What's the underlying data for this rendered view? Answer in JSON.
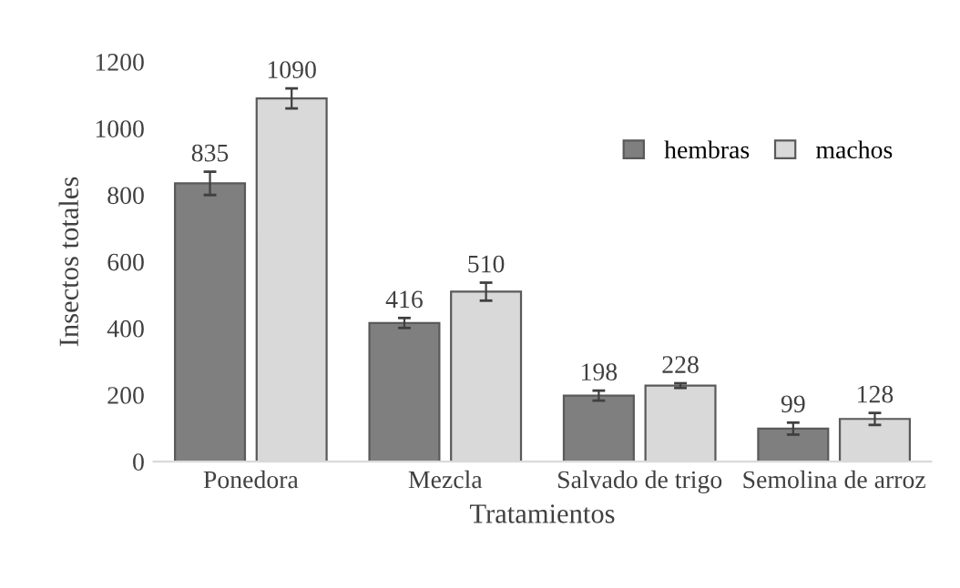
{
  "chart_data": {
    "type": "bar",
    "xlabel": "Tratamientos",
    "ylabel": "Insectos totales",
    "categories": [
      "Ponedora",
      "Mezcla",
      "Salvado de trigo",
      "Semolina de arroz"
    ],
    "series": [
      {
        "name": "hembras",
        "color": "#7f7f7f",
        "values": [
          835,
          416,
          198,
          99
        ],
        "errors": [
          35,
          15,
          15,
          18
        ]
      },
      {
        "name": "machos",
        "color": "#d9d9d9",
        "values": [
          1090,
          510,
          228,
          128
        ],
        "errors": [
          30,
          27,
          7,
          18
        ]
      }
    ],
    "ylim": [
      0,
      1200
    ],
    "yticks": [
      0,
      200,
      400,
      600,
      800,
      1000,
      1200
    ],
    "grid": false,
    "legend": "top right",
    "data_labels": true
  }
}
